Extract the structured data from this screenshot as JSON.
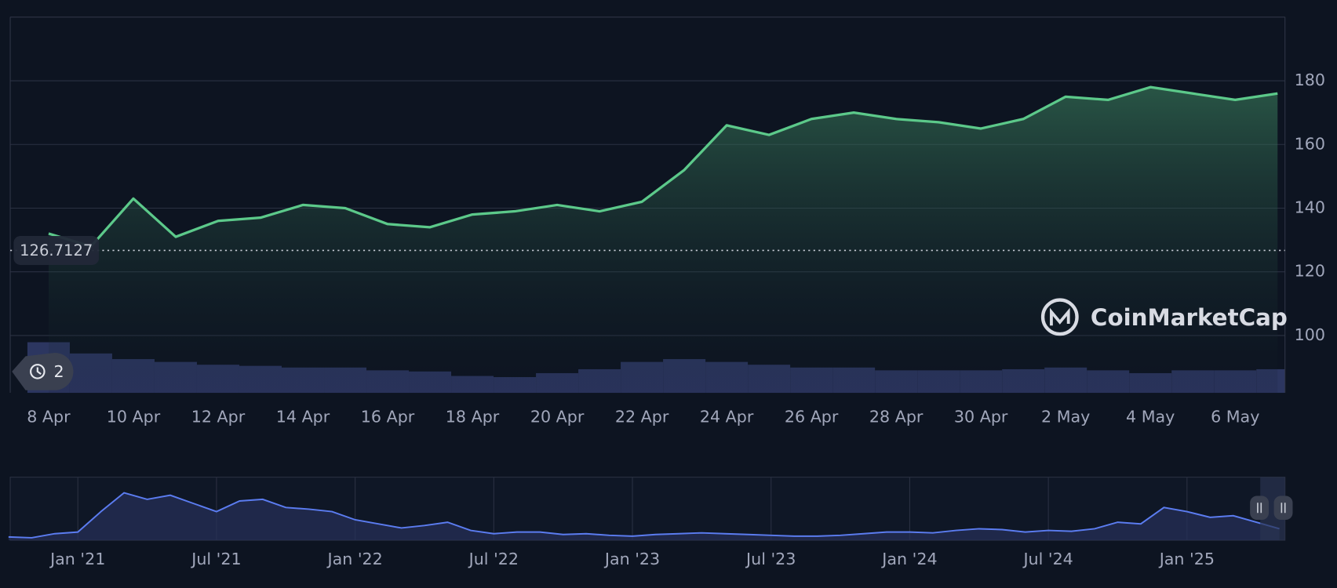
{
  "chart_data": {
    "type": "line",
    "categories": [
      "8 Apr",
      null,
      "10 Apr",
      null,
      "12 Apr",
      null,
      "14 Apr",
      null,
      "16 Apr",
      null,
      "18 Apr",
      null,
      "20 Apr",
      null,
      "22 Apr",
      null,
      "24 Apr",
      null,
      "26 Apr",
      null,
      "28 Apr",
      null,
      "30 Apr",
      null,
      "2 May",
      null,
      "4 May",
      null,
      "6 May",
      null
    ],
    "series": [
      {
        "color": "#5cc98a",
        "values": [
          132,
          128,
          143,
          131,
          136,
          137,
          141,
          140,
          135,
          134,
          138,
          139,
          141,
          139,
          142,
          152,
          166,
          163,
          168,
          170,
          168,
          167,
          165,
          168,
          175,
          174,
          178,
          176,
          174,
          176
        ]
      }
    ],
    "ylim": [
      82,
      200
    ],
    "yticks": [
      100,
      120,
      140,
      160,
      180
    ],
    "grid": true,
    "baseline": {
      "value": 126.7127,
      "label": "126.7127"
    },
    "volume": {
      "color": "#2c3660",
      "ylim": [
        0,
        100
      ],
      "values": [
        90,
        70,
        60,
        55,
        50,
        48,
        45,
        45,
        40,
        38,
        30,
        28,
        35,
        42,
        55,
        60,
        55,
        50,
        45,
        45,
        40,
        40,
        40,
        42,
        45,
        40,
        35,
        40,
        40,
        42
      ]
    },
    "navigator": {
      "color": "#5b7cf0",
      "ylim": [
        0,
        75
      ],
      "categories": [
        null,
        null,
        null,
        "Jan '21",
        null,
        null,
        null,
        null,
        null,
        "Jul '21",
        null,
        null,
        null,
        null,
        null,
        "Jan '22",
        null,
        null,
        null,
        null,
        null,
        "Jul '22",
        null,
        null,
        null,
        null,
        null,
        "Jan '23",
        null,
        null,
        null,
        null,
        null,
        "Jul '23",
        null,
        null,
        null,
        null,
        null,
        "Jan '24",
        null,
        null,
        null,
        null,
        null,
        "Jul '24",
        null,
        null,
        null,
        null,
        null,
        "Jan '25",
        null,
        null,
        null,
        null
      ],
      "values": [
        4,
        3,
        8,
        10,
        35,
        58,
        50,
        55,
        45,
        35,
        48,
        50,
        40,
        38,
        35,
        25,
        20,
        15,
        18,
        22,
        12,
        8,
        10,
        10,
        7,
        8,
        6,
        5,
        7,
        8,
        9,
        8,
        7,
        6,
        5,
        5,
        6,
        8,
        10,
        10,
        9,
        12,
        14,
        13,
        10,
        12,
        11,
        14,
        22,
        20,
        40,
        35,
        28,
        30,
        22,
        14
      ]
    },
    "watermark": "CoinMarketCap",
    "history_count": 2
  }
}
